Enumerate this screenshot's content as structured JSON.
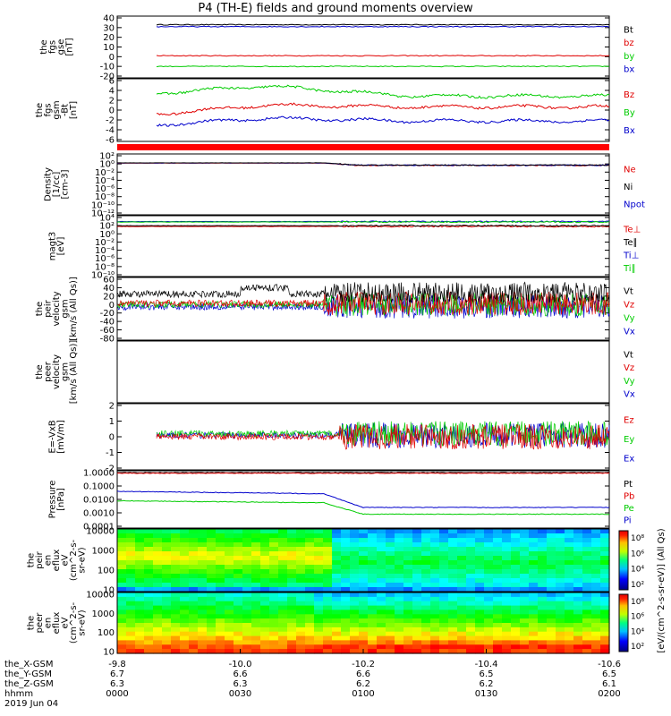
{
  "title": "P4 (TH-E) fields and ground moments overview",
  "colors": {
    "black": "#000000",
    "red": "#e00000",
    "green": "#00cc00",
    "blue": "#0000cc"
  },
  "chart_data": [
    {
      "type": "line",
      "ylabel": [
        "the",
        "fgs",
        "gse",
        "[nT]"
      ],
      "ylim": [
        -20,
        40
      ],
      "yticks": [
        "40",
        "30",
        "20",
        "10",
        "0",
        "-10",
        "-20"
      ],
      "legend": [
        {
          "name": "Bt",
          "color": "#000000"
        },
        {
          "name": "bz",
          "color": "#e00000"
        },
        {
          "name": "by",
          "color": "#00cc00"
        },
        {
          "name": "bx",
          "color": "#0000cc"
        }
      ],
      "series": [
        {
          "name": "Bt",
          "level": 33
        },
        {
          "name": "bz",
          "level": 1
        },
        {
          "name": "by",
          "level": -10
        },
        {
          "name": "bx",
          "level": 31
        }
      ]
    },
    {
      "type": "line",
      "ylabel": [
        "the",
        "fgs",
        "gsm",
        "-Bt",
        "[nT]"
      ],
      "ylim": [
        -7,
        6
      ],
      "yticks": [
        "6",
        "4",
        "2",
        "0",
        "-2",
        "-4",
        "-6"
      ],
      "legend": [
        {
          "name": "Bz",
          "color": "#e00000"
        },
        {
          "name": "By",
          "color": "#00cc00"
        },
        {
          "name": "Bx",
          "color": "#0000cc"
        }
      ],
      "series": [
        {
          "name": "Bz",
          "level": 0
        },
        {
          "name": "By",
          "level": 3
        },
        {
          "name": "Bx",
          "level": -3
        }
      ]
    },
    {
      "type": "line",
      "ylabel": [
        "Density",
        "[1/cc]",
        "[cm-3]"
      ],
      "ylim_log": [
        -12,
        2
      ],
      "yticks": [
        "10²",
        "10⁰",
        "10⁻²",
        "10⁻⁴",
        "10⁻⁶",
        "10⁻⁸",
        "10⁻¹⁰",
        "10⁻¹²"
      ],
      "legend": [
        {
          "name": "Ne",
          "color": "#e00000"
        },
        {
          "name": "Ni",
          "color": "#000000"
        },
        {
          "name": "Npot",
          "color": "#0000cc"
        }
      ]
    },
    {
      "type": "line",
      "ylabel": [
        "magt3",
        "[eV]"
      ],
      "ylim_log": [
        -10,
        4
      ],
      "yticks": [
        "10⁴",
        "10²",
        "10⁰",
        "10⁻²",
        "10⁻⁴",
        "10⁻⁶",
        "10⁻⁸",
        "10⁻¹⁰"
      ],
      "legend": [
        {
          "name": "Te⊥",
          "color": "#e00000"
        },
        {
          "name": "Te∥",
          "color": "#000000"
        },
        {
          "name": "Ti⊥",
          "color": "#0000cc"
        },
        {
          "name": "Ti∥",
          "color": "#00cc00"
        }
      ]
    },
    {
      "type": "line",
      "ylabel": [
        "the",
        "peir",
        "velocity",
        "gsm",
        "[km/s (All Qs)]"
      ],
      "ylim": [
        -80,
        60
      ],
      "yticks": [
        "60",
        "40",
        "20",
        "0",
        "-20",
        "-40",
        "-60",
        "-80"
      ],
      "legend": [
        {
          "name": "Vt",
          "color": "#000000"
        },
        {
          "name": "Vz",
          "color": "#e00000"
        },
        {
          "name": "Vy",
          "color": "#00cc00"
        },
        {
          "name": "Vx",
          "color": "#0000cc"
        }
      ]
    },
    {
      "type": "line",
      "ylabel": [
        "the",
        "peer",
        "velocity",
        "gsm",
        "[km/s (All Qs)]"
      ],
      "yticks": [],
      "legend": [
        {
          "name": "Vt",
          "color": "#000000"
        },
        {
          "name": "Vz",
          "color": "#e00000"
        },
        {
          "name": "Vy",
          "color": "#00cc00"
        },
        {
          "name": "Vx",
          "color": "#0000cc"
        }
      ]
    },
    {
      "type": "line",
      "ylabel": [
        "E=-VxB",
        "[mV/m]"
      ],
      "ylim": [
        -2,
        2
      ],
      "yticks": [
        "2",
        "1",
        "0",
        "-1",
        "-2"
      ],
      "legend": [
        {
          "name": "Ez",
          "color": "#e00000"
        },
        {
          "name": "Ey",
          "color": "#00cc00"
        },
        {
          "name": "Ex",
          "color": "#0000cc"
        }
      ]
    },
    {
      "type": "line",
      "ylabel": [
        "Pressure",
        "[nPa]"
      ],
      "ylim_log": [
        -4,
        0
      ],
      "yticks": [
        "1.0000",
        "0.1000",
        "0.0100",
        "0.0010",
        "0.0001"
      ],
      "legend": [
        {
          "name": "Pt",
          "color": "#000000"
        },
        {
          "name": "Pb",
          "color": "#e00000"
        },
        {
          "name": "Pe",
          "color": "#00cc00"
        },
        {
          "name": "Pi",
          "color": "#0000cc"
        }
      ]
    },
    {
      "type": "heatmap",
      "ylabel": [
        "the",
        "peir",
        "en",
        "eflux",
        "eV",
        "(cm^2-s-",
        "sr-eV)"
      ],
      "yticks": [
        "10000",
        "1000",
        "100",
        "10"
      ],
      "colorbar": {
        "ticks": [
          "10⁸",
          "10⁶",
          "10⁴",
          "10²"
        ],
        "label": "[eV/(cm^2-s-sr-eV)] (All Qs)"
      }
    },
    {
      "type": "heatmap",
      "ylabel": [
        "the",
        "peer",
        "en",
        "eflux",
        "eV",
        "(cm^2-s-",
        "sr-eV)"
      ],
      "yticks": [
        "10000",
        "1000",
        "100",
        "10"
      ],
      "colorbar": {
        "ticks": [
          "10⁸",
          "10⁶",
          "10⁴",
          "10²"
        ],
        "label": "[eV/(cm^2-s-sr-eV)] (All Qs)"
      }
    }
  ],
  "xaxis": {
    "row_labels": [
      "the_X-GSM",
      "the_Y-GSM",
      "the_Z-GSM",
      "hhmm",
      "2019 Jun 04"
    ],
    "ticks": [
      {
        "values": [
          "-9.8",
          "6.7",
          "6.3",
          "0000"
        ]
      },
      {
        "values": [
          "-10.0",
          "6.6",
          "6.3",
          "0030"
        ]
      },
      {
        "values": [
          "-10.2",
          "6.6",
          "6.2",
          "0100"
        ]
      },
      {
        "values": [
          "-10.4",
          "6.5",
          "6.2",
          "0130"
        ]
      },
      {
        "values": [
          "-10.6",
          "6.5",
          "6.1",
          "0200"
        ]
      }
    ]
  },
  "colorbar_label": "[eV/(cm^2-s-sr-eV)] (All Qs)"
}
